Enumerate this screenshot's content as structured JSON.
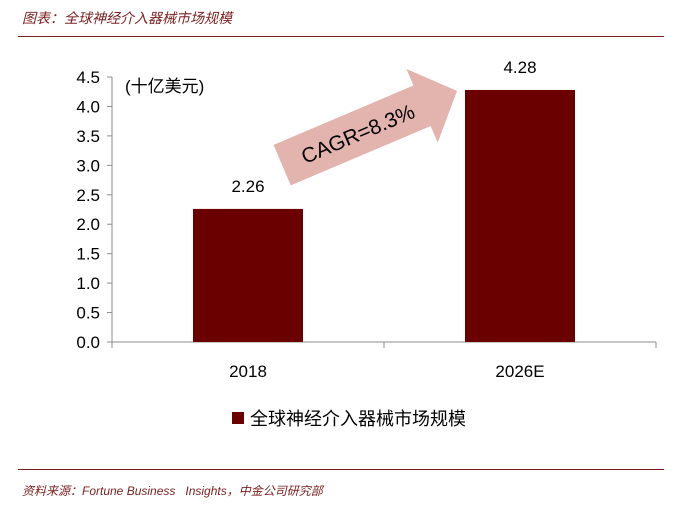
{
  "caption": "图表：全球神经介入器械市场规模",
  "source": "资料来源：Fortune Business   Insights，中金公司研究部",
  "colors": {
    "bar": "#6a0000",
    "arrow": "#e3b3ae",
    "rule": "#7a1e1e"
  },
  "chart_data": {
    "type": "bar",
    "unit_label": "(十亿美元)",
    "categories": [
      "2018",
      "2026E"
    ],
    "series": [
      {
        "name": "全球神经介入器械市场规模",
        "values": [
          2.26,
          4.28
        ]
      }
    ],
    "data_labels": [
      "2.26",
      "4.28"
    ],
    "y_ticks": [
      "0.0",
      "0.5",
      "1.0",
      "1.5",
      "2.0",
      "2.5",
      "3.0",
      "3.5",
      "4.0",
      "4.5"
    ],
    "ylim": [
      0,
      4.5
    ],
    "annotation": "CAGR=8.3%",
    "legend_position": "bottom",
    "grid": false
  }
}
